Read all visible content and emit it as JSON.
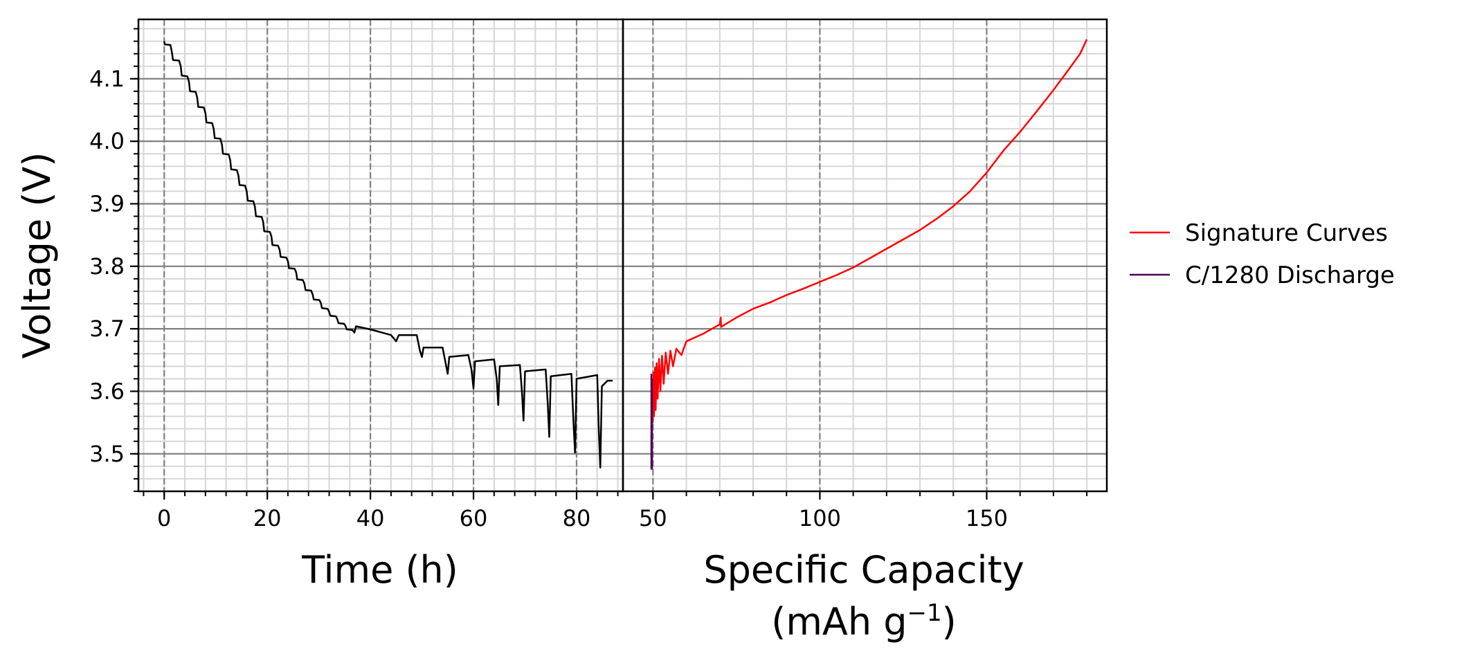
{
  "chart_data": [
    {
      "type": "line",
      "panel": "left",
      "xlabel": "Time (h)",
      "ylabel": "Voltage (V)",
      "xlim": [
        -5,
        89
      ],
      "ylim": [
        3.44,
        4.195
      ],
      "xticks": [
        "0",
        "20",
        "40",
        "60",
        "80"
      ],
      "xtick_values": [
        0,
        20,
        40,
        60,
        80
      ],
      "yticks": [
        "3.5",
        "3.6",
        "3.7",
        "3.8",
        "3.9",
        "4.0",
        "4.1"
      ],
      "ytick_values": [
        3.5,
        3.6,
        3.7,
        3.8,
        3.9,
        4.0,
        4.1
      ],
      "grid": true,
      "series": [
        {
          "color": "#000000",
          "points": [
            [
              0,
              4.16
            ],
            [
              0.1,
              4.155
            ],
            [
              1.2,
              4.154
            ],
            [
              1.5,
              4.142
            ],
            [
              1.7,
              4.13
            ],
            [
              2.9,
              4.129
            ],
            [
              3.2,
              4.12
            ],
            [
              3.4,
              4.105
            ],
            [
              4.5,
              4.104
            ],
            [
              4.8,
              4.095
            ],
            [
              5.0,
              4.08
            ],
            [
              6.1,
              4.079
            ],
            [
              6.4,
              4.07
            ],
            [
              6.6,
              4.055
            ],
            [
              7.7,
              4.054
            ],
            [
              8.0,
              4.045
            ],
            [
              8.2,
              4.03
            ],
            [
              9.3,
              4.029
            ],
            [
              9.6,
              4.02
            ],
            [
              9.8,
              4.005
            ],
            [
              10.9,
              4.004
            ],
            [
              11.2,
              3.995
            ],
            [
              11.4,
              3.98
            ],
            [
              12.5,
              3.979
            ],
            [
              12.8,
              3.97
            ],
            [
              13.0,
              3.955
            ],
            [
              14.1,
              3.954
            ],
            [
              14.4,
              3.945
            ],
            [
              14.6,
              3.93
            ],
            [
              15.7,
              3.929
            ],
            [
              16.0,
              3.92
            ],
            [
              16.2,
              3.905
            ],
            [
              17.3,
              3.904
            ],
            [
              17.6,
              3.895
            ],
            [
              17.8,
              3.88
            ],
            [
              18.9,
              3.879
            ],
            [
              19.2,
              3.871
            ],
            [
              19.4,
              3.856
            ],
            [
              20.5,
              3.855
            ],
            [
              20.8,
              3.848
            ],
            [
              21.0,
              3.834
            ],
            [
              22.1,
              3.833
            ],
            [
              22.4,
              3.826
            ],
            [
              22.6,
              3.815
            ],
            [
              23.7,
              3.814
            ],
            [
              24.0,
              3.808
            ],
            [
              24.2,
              3.797
            ],
            [
              25.3,
              3.796
            ],
            [
              25.6,
              3.79
            ],
            [
              25.8,
              3.779
            ],
            [
              26.9,
              3.778
            ],
            [
              27.2,
              3.772
            ],
            [
              27.4,
              3.762
            ],
            [
              28.5,
              3.761
            ],
            [
              28.8,
              3.755
            ],
            [
              29.0,
              3.747
            ],
            [
              30.1,
              3.746
            ],
            [
              30.4,
              3.741
            ],
            [
              30.6,
              3.733
            ],
            [
              31.7,
              3.732
            ],
            [
              32.0,
              3.727
            ],
            [
              32.2,
              3.721
            ],
            [
              33.3,
              3.72
            ],
            [
              33.6,
              3.715
            ],
            [
              33.8,
              3.709
            ],
            [
              34.9,
              3.708
            ],
            [
              35.2,
              3.704
            ],
            [
              35.4,
              3.699
            ],
            [
              36.5,
              3.698
            ],
            [
              36.9,
              3.694
            ],
            [
              37.2,
              3.704
            ],
            [
              40.0,
              3.699
            ],
            [
              44.0,
              3.69
            ],
            [
              45.0,
              3.68
            ],
            [
              45.5,
              3.69
            ],
            [
              49.0,
              3.69
            ],
            [
              49.6,
              3.665
            ],
            [
              50.0,
              3.655
            ],
            [
              50.3,
              3.67
            ],
            [
              54.0,
              3.67
            ],
            [
              54.6,
              3.645
            ],
            [
              55.0,
              3.628
            ],
            [
              55.3,
              3.655
            ],
            [
              59.0,
              3.658
            ],
            [
              59.6,
              3.635
            ],
            [
              60.0,
              3.605
            ],
            [
              60.3,
              3.648
            ],
            [
              64.0,
              3.651
            ],
            [
              64.5,
              3.62
            ],
            [
              64.8,
              3.578
            ],
            [
              65.1,
              3.64
            ],
            [
              69.0,
              3.642
            ],
            [
              69.4,
              3.6
            ],
            [
              69.7,
              3.553
            ],
            [
              70.0,
              3.632
            ],
            [
              74.0,
              3.635
            ],
            [
              74.4,
              3.58
            ],
            [
              74.7,
              3.527
            ],
            [
              75.0,
              3.624
            ],
            [
              79.0,
              3.628
            ],
            [
              79.4,
              3.55
            ],
            [
              79.7,
              3.502
            ],
            [
              80.0,
              3.62
            ],
            [
              84.0,
              3.626
            ],
            [
              84.3,
              3.54
            ],
            [
              84.6,
              3.478
            ],
            [
              84.9,
              3.608
            ],
            [
              86.0,
              3.617
            ],
            [
              87.0,
              3.617
            ]
          ]
        }
      ]
    },
    {
      "type": "line",
      "panel": "right",
      "xlabel": "Specific Capacity",
      "xlabel_line2": "(mAh g",
      "xlabel_sup": "−1",
      "xlabel_close": ")",
      "xlim": [
        41,
        186
      ],
      "ylim": [
        3.44,
        4.195
      ],
      "xticks": [
        "50",
        "100",
        "150"
      ],
      "xtick_values": [
        50,
        100,
        150
      ],
      "grid": true,
      "legend_position": "outside-right",
      "series": [
        {
          "name": "Signature Curves",
          "color": "#ff0000",
          "points": [
            [
              49.8,
              3.61
            ],
            [
              49.9,
              3.55
            ],
            [
              50.1,
              3.63
            ],
            [
              50.3,
              3.56
            ],
            [
              50.6,
              3.638
            ],
            [
              50.8,
              3.57
            ],
            [
              51.1,
              3.645
            ],
            [
              51.4,
              3.588
            ],
            [
              51.8,
              3.652
            ],
            [
              52.2,
              3.6
            ],
            [
              52.7,
              3.657
            ],
            [
              53.2,
              3.612
            ],
            [
              53.8,
              3.662
            ],
            [
              54.5,
              3.628
            ],
            [
              55.2,
              3.665
            ],
            [
              56.0,
              3.64
            ],
            [
              57.0,
              3.668
            ],
            [
              58.5,
              3.658
            ],
            [
              60.0,
              3.68
            ],
            [
              65.0,
              3.692
            ],
            [
              70.0,
              3.707
            ],
            [
              70.3,
              3.718
            ],
            [
              70.4,
              3.703
            ],
            [
              75.0,
              3.718
            ],
            [
              80.0,
              3.732
            ],
            [
              85.0,
              3.742
            ],
            [
              90.0,
              3.754
            ],
            [
              95.0,
              3.764
            ],
            [
              100.0,
              3.775
            ],
            [
              105.0,
              3.786
            ],
            [
              110.0,
              3.798
            ],
            [
              115.0,
              3.813
            ],
            [
              120.0,
              3.828
            ],
            [
              125.0,
              3.843
            ],
            [
              130.0,
              3.858
            ],
            [
              135.0,
              3.876
            ],
            [
              140.0,
              3.896
            ],
            [
              145.0,
              3.92
            ],
            [
              150.0,
              3.95
            ],
            [
              155.0,
              3.985
            ],
            [
              160.0,
              4.015
            ],
            [
              165.0,
              4.048
            ],
            [
              170.0,
              4.082
            ],
            [
              175.0,
              4.118
            ],
            [
              178.0,
              4.14
            ],
            [
              180.0,
              4.163
            ]
          ]
        },
        {
          "name": "C/1280 Discharge",
          "color": "#4b0055",
          "points": [
            [
              49.5,
              3.628
            ],
            [
              49.5,
              3.476
            ],
            [
              49.7,
              3.476
            ],
            [
              49.7,
              3.62
            ]
          ]
        }
      ]
    }
  ]
}
